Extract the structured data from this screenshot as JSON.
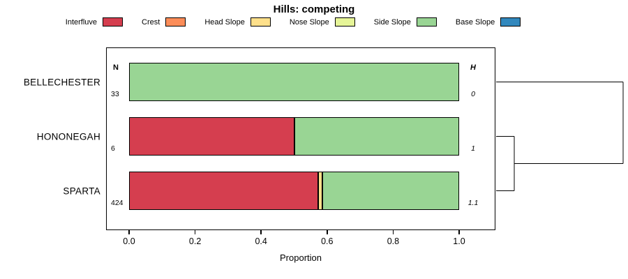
{
  "title": "Hills: competing",
  "xlabel": "Proportion",
  "legend": [
    {
      "label": "Interfluve",
      "color": "#d53e4f"
    },
    {
      "label": "Crest",
      "color": "#fc8d59"
    },
    {
      "label": "Head Slope",
      "color": "#fee08b"
    },
    {
      "label": "Nose Slope",
      "color": "#e6f598"
    },
    {
      "label": "Side Slope",
      "color": "#99d594"
    },
    {
      "label": "Base Slope",
      "color": "#3288bd"
    }
  ],
  "chart_data": {
    "type": "bar",
    "stacked": true,
    "orientation": "horizontal",
    "title": "Hills: competing",
    "xlabel": "Proportion",
    "xlim": [
      0,
      1
    ],
    "xticks": [
      0.0,
      0.2,
      0.4,
      0.6,
      0.8,
      1.0
    ],
    "xtick_labels": [
      "0.0",
      "0.2",
      "0.4",
      "0.6",
      "0.8",
      "1.0"
    ],
    "n_header": "N",
    "h_header": "H",
    "categories": [
      "Interfluve",
      "Crest",
      "Head Slope",
      "Nose Slope",
      "Side Slope",
      "Base Slope"
    ],
    "colors": [
      "#d53e4f",
      "#fc8d59",
      "#fee08b",
      "#e6f598",
      "#99d594",
      "#3288bd"
    ],
    "rows": [
      {
        "label": "BELLECHESTER",
        "n": "33",
        "h": "0",
        "segments": [
          {
            "category": "Side Slope",
            "value": 1.0
          }
        ]
      },
      {
        "label": "HONONEGAH",
        "n": "6",
        "h": "1",
        "segments": [
          {
            "category": "Interfluve",
            "value": 0.5
          },
          {
            "category": "Side Slope",
            "value": 0.5
          }
        ]
      },
      {
        "label": "SPARTA",
        "n": "424",
        "h": "1.1",
        "segments": [
          {
            "category": "Interfluve",
            "value": 0.573
          },
          {
            "category": "Head Slope",
            "value": 0.012
          },
          {
            "category": "Side Slope",
            "value": 0.415
          }
        ]
      }
    ],
    "dendrogram": {
      "first_merge": [
        "HONONEGAH",
        "SPARTA"
      ],
      "second_merge": [
        "BELLECHESTER",
        "cluster(HONONEGAH,SPARTA)"
      ],
      "legend_position": "top"
    }
  }
}
